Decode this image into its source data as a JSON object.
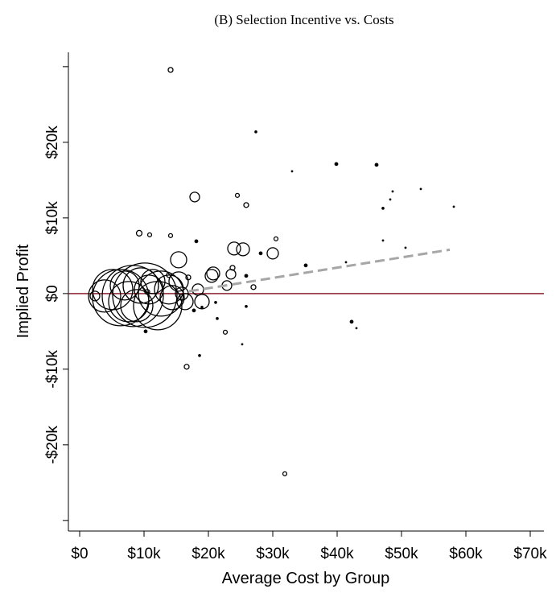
{
  "chart_data": {
    "type": "scatter",
    "title": "(B) Selection Incentive vs. Costs",
    "xlabel": "Average Cost by Group",
    "ylabel": "Implied Profit",
    "x": [
      14125,
      27375,
      39875,
      46125,
      33000,
      17875,
      24500,
      53000,
      48625,
      48250,
      47125,
      58125,
      25875,
      9250,
      10875,
      14125,
      18125,
      30500,
      28125,
      30000,
      25375,
      24000,
      15375,
      47125,
      50625,
      35125,
      41375,
      20750,
      20500,
      23500,
      23750,
      25875,
      22875,
      27000,
      18375,
      15875,
      19000,
      16875,
      13875,
      10500,
      10125,
      6375,
      8250,
      5125,
      12125,
      12625,
      9500,
      7625,
      3875,
      2375,
      13875,
      11375,
      8875,
      10750,
      7000,
      14375,
      15375,
      16375,
      10250,
      25875,
      19000,
      17750,
      22625,
      18625,
      25250,
      16625,
      42250,
      43000,
      31875,
      21375,
      21125
    ],
    "series": [
      {
        "color": "#000000",
        "values": [
          29574,
          21383,
          17128,
          17021,
          16170,
          12766,
          12979,
          13830,
          13510,
          12447,
          11277,
          11489,
          11702,
          7979,
          7766,
          7660,
          6915,
          7234,
          5319,
          5319,
          5851,
          5957,
          4468,
          7021,
          6064,
          3723,
          4149,
          2660,
          2340,
          2553,
          3404,
          2340,
          1064,
          851,
          532,
          0,
          -1064,
          2128,
          2447,
          213,
          -213,
          -532,
          -319,
          532,
          -1596,
          0,
          1064,
          -1064,
          -319,
          -319,
          532,
          1596,
          -1596,
          532,
          1064,
          -532,
          1596,
          -1064,
          -5000,
          -1702,
          -1809,
          -2234,
          -5106,
          -8191,
          -6702,
          -9681,
          -3723,
          -4574,
          -23830,
          -3298,
          -1170
        ],
        "sizes": [
          9,
          2,
          4,
          4,
          1,
          36,
          6,
          1,
          1,
          1,
          2,
          1,
          9,
          12,
          6,
          6,
          4,
          6,
          4,
          49,
          64,
          64,
          100,
          1,
          1,
          4,
          1,
          64,
          64,
          36,
          9,
          4,
          36,
          9,
          49,
          64,
          81,
          9,
          9,
          9,
          1600,
          1225,
          1444,
          625,
          900,
          784,
          484,
          625,
          400,
          36,
          324,
          225,
          400,
          324,
          324,
          225,
          144,
          100,
          4,
          2,
          2,
          4,
          6,
          2,
          1,
          9,
          4,
          1,
          6,
          2,
          2
        ]
      }
    ],
    "hline": {
      "value": 0,
      "color": "#8b2232"
    },
    "fit_line": {
      "x": [
        17000,
        57500
      ],
      "y": [
        300,
        5800
      ],
      "color": "#a6a6a6"
    },
    "xlim": [
      -1750,
      72125
    ],
    "ylim": [
      -31400,
      31900
    ],
    "xticks": [
      {
        "value": 0,
        "label": "$0"
      },
      {
        "value": 10000,
        "label": "$10k"
      },
      {
        "value": 20000,
        "label": "$20k"
      },
      {
        "value": 30000,
        "label": "$30k"
      },
      {
        "value": 40000,
        "label": "$40k"
      },
      {
        "value": 50000,
        "label": "$50k"
      },
      {
        "value": 60000,
        "label": "$60k"
      },
      {
        "value": 70000,
        "label": "$70k"
      }
    ],
    "yticks": [
      {
        "value": -30000,
        "label": null
      },
      {
        "value": -20000,
        "label": "-$20k"
      },
      {
        "value": -10000,
        "label": "-$10k"
      },
      {
        "value": 0,
        "label": "$0"
      },
      {
        "value": 10000,
        "label": "$10k"
      },
      {
        "value": 20000,
        "label": "$20k"
      },
      {
        "value": 30000,
        "label": null
      }
    ]
  }
}
